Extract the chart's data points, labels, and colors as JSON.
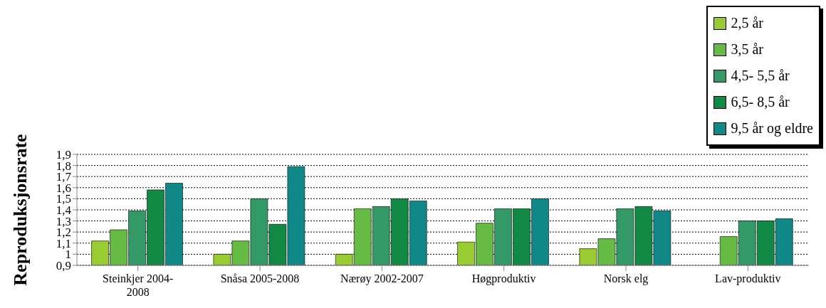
{
  "chart_data": {
    "type": "bar",
    "ylabel": "Reproduksjonsrate",
    "categories": [
      "Steinkjer 2004-2008",
      "Snåsa 2005-2008",
      "Nærøy 2002-2007",
      "Høgproduktiv",
      "Norsk elg",
      "Lav-produktiv"
    ],
    "series": [
      {
        "name": "2,5 år",
        "color": "#99cc33",
        "values": [
          1.12,
          1.0,
          1.0,
          1.11,
          1.05,
          0.9
        ]
      },
      {
        "name": "3,5 år",
        "color": "#66bb44",
        "values": [
          1.22,
          1.12,
          1.41,
          1.28,
          1.14,
          1.16
        ]
      },
      {
        "name": "4,5- 5,5 år",
        "color": "#339966",
        "values": [
          1.39,
          1.5,
          1.43,
          1.41,
          1.41,
          1.3
        ]
      },
      {
        "name": "6,5- 8,5 år",
        "color": "#118844",
        "values": [
          1.58,
          1.27,
          1.5,
          1.41,
          1.43,
          1.3
        ]
      },
      {
        "name": "9,5 år og eldre",
        "color": "#118888",
        "values": [
          1.64,
          1.79,
          1.48,
          1.5,
          1.39,
          1.32
        ]
      }
    ],
    "ylim": [
      0.9,
      1.9
    ],
    "yticks": [
      {
        "value": 0.9,
        "label": "0,9"
      },
      1,
      {
        "value": 1.1,
        "label": "1,1"
      },
      {
        "value": 1.2,
        "label": "1,2"
      },
      {
        "value": 1.3,
        "label": "1,3"
      },
      {
        "value": 1.4,
        "label": "1,4"
      },
      {
        "value": 1.5,
        "label": "1,5"
      },
      {
        "value": 1.6,
        "label": "1,6"
      },
      {
        "value": 1.7,
        "label": "1,7"
      },
      {
        "value": 1.8,
        "label": "1,8"
      },
      {
        "value": 1.9,
        "label": "1,9"
      }
    ],
    "grid": "y",
    "legend": "top right"
  }
}
